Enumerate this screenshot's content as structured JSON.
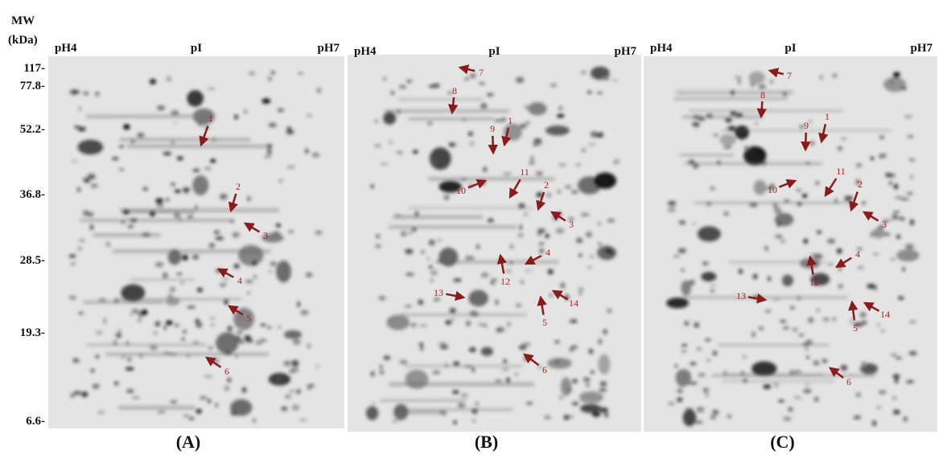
{
  "axis": {
    "title": [
      "MW",
      "(kDa)"
    ],
    "ticks": [
      "117-",
      "77.8-",
      "52.2-",
      "36.8-",
      "28.5-",
      "19.3-",
      "6.6-"
    ]
  },
  "panels": [
    {
      "label": "(A)",
      "left": "pH4",
      "center": "pI",
      "right": "pH7",
      "arrows": [
        "1",
        "2",
        "3",
        "4",
        "5",
        "6"
      ]
    },
    {
      "label": "(B)",
      "left": "pH4",
      "center": "pI",
      "right": "pH7",
      "arrows": [
        "7",
        "8",
        "9",
        "1",
        "10",
        "11",
        "2",
        "3",
        "4",
        "12",
        "13",
        "14",
        "5",
        "6"
      ]
    },
    {
      "label": "(C)",
      "left": "pH4",
      "center": "pI",
      "right": "pH7",
      "arrows": [
        "7",
        "8",
        "9",
        "1",
        "10",
        "11",
        "2",
        "3",
        "4",
        "12",
        "13",
        "14",
        "5",
        "6"
      ]
    }
  ]
}
